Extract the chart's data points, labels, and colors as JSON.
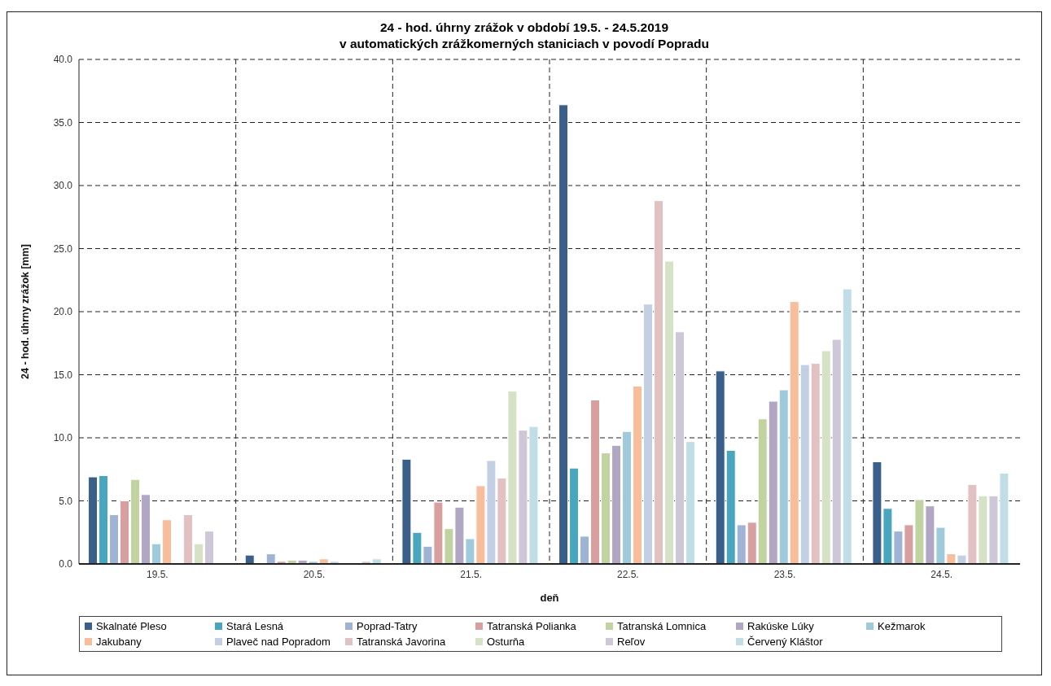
{
  "chart_data": {
    "type": "bar",
    "title": "24 - hod. úhrny zrážok v období  19.5. - 24.5.2019\nv automatických zrážkomerných staniciach v povodí  Popradu",
    "xlabel": "deň",
    "ylabel": "24 - hod. úhrny zrážok  [mm]",
    "categories": [
      "19.5.",
      "20.5.",
      "21.5.",
      "22.5.",
      "23.5.",
      "24.5."
    ],
    "series": [
      {
        "name": "Skalnaté Pleso",
        "color": "#3a5f8a",
        "values": [
          6.9,
          0.7,
          8.3,
          36.4,
          15.3,
          8.1
        ]
      },
      {
        "name": "Stará Lesná",
        "color": "#4aa5bf",
        "values": [
          7.0,
          null,
          2.5,
          7.6,
          9.0,
          4.4
        ]
      },
      {
        "name": "Poprad-Tatry",
        "color": "#9fb3d4",
        "values": [
          3.9,
          0.8,
          1.4,
          2.2,
          3.1,
          2.6
        ]
      },
      {
        "name": "Tatranská Polianka",
        "color": "#d79f9f",
        "values": [
          5.0,
          0.2,
          4.9,
          13.0,
          3.3,
          3.1
        ]
      },
      {
        "name": "Tatranská Lomnica",
        "color": "#c2d3a2",
        "values": [
          6.7,
          0.3,
          2.8,
          8.8,
          11.5,
          5.1
        ]
      },
      {
        "name": "Rakúske Lúky",
        "color": "#b1a6c4",
        "values": [
          5.5,
          0.3,
          4.5,
          9.4,
          12.9,
          4.6
        ]
      },
      {
        "name": "Kežmarok",
        "color": "#9fcadb",
        "values": [
          1.6,
          0.2,
          2.0,
          10.5,
          13.8,
          2.9
        ]
      },
      {
        "name": "Jakubany",
        "color": "#f8bd9a",
        "values": [
          3.5,
          0.4,
          6.2,
          14.1,
          20.8,
          0.8
        ]
      },
      {
        "name": "Plaveč nad Popradom",
        "color": "#c3cfe2",
        "values": [
          null,
          0.2,
          8.2,
          20.6,
          15.8,
          0.7
        ]
      },
      {
        "name": "Tatranská Javorina",
        "color": "#e2c1c3",
        "values": [
          3.9,
          null,
          6.8,
          28.8,
          15.9,
          6.3
        ]
      },
      {
        "name": "Osturňa",
        "color": "#d6e2c5",
        "values": [
          1.6,
          null,
          13.7,
          24.0,
          16.9,
          5.4
        ]
      },
      {
        "name": "Reľov",
        "color": "#cdc7d8",
        "values": [
          2.6,
          0.2,
          10.6,
          18.4,
          17.8,
          5.4
        ]
      },
      {
        "name": "Červený Kláštor",
        "color": "#c1dde6",
        "values": [
          null,
          0.4,
          10.9,
          9.7,
          21.8,
          7.2
        ]
      }
    ],
    "ylim": [
      0,
      40
    ],
    "yticks": [
      {
        "value": 0,
        "label": "0.0"
      },
      {
        "value": 5,
        "label": "5.0"
      },
      {
        "value": 10,
        "label": "10.0"
      },
      {
        "value": 15,
        "label": "15.0"
      },
      {
        "value": 20,
        "label": "20.0"
      },
      {
        "value": 25,
        "label": "25.0"
      },
      {
        "value": 30,
        "label": "30.0"
      },
      {
        "value": 35,
        "label": "35.0"
      },
      {
        "value": 40,
        "label": "40.0"
      }
    ],
    "grid": true,
    "legend": "bottom"
  }
}
